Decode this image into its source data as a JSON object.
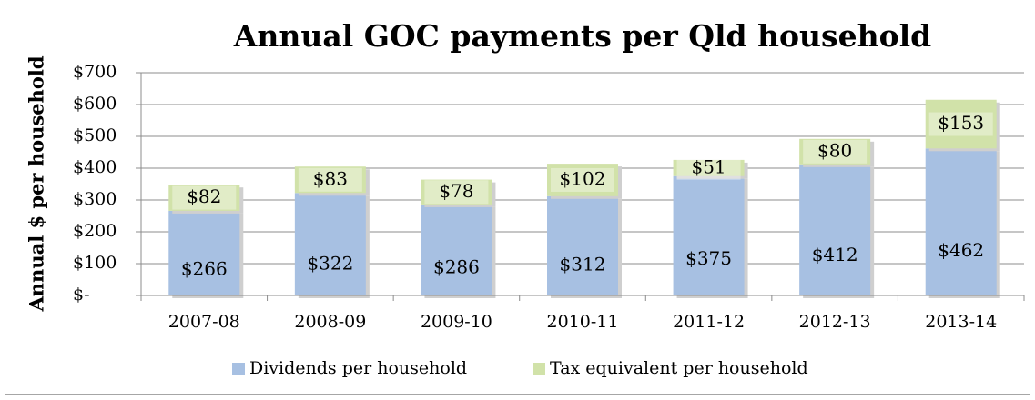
{
  "chart_data": {
    "type": "stacked_bar",
    "title": "Annual GOC payments per Qld household",
    "y_label": "Annual $ per household",
    "categories": [
      "2007-08",
      "2008-09",
      "2009-10",
      "2010-11",
      "2011-12",
      "2012-13",
      "2013-14"
    ],
    "series": [
      {
        "name": "Dividends per household",
        "color": "#a7c0e2",
        "values": [
          266,
          322,
          286,
          312,
          375,
          412,
          462
        ],
        "value_labels": [
          "$266",
          "$322",
          "$286",
          "$312",
          "$375",
          "$412",
          "$462"
        ]
      },
      {
        "name": "Tax equivalent per household",
        "color": "#d1e2a9",
        "values": [
          82,
          83,
          78,
          102,
          51,
          80,
          153
        ],
        "value_labels": [
          "$82",
          "$83",
          "$78",
          "$102",
          "$51",
          "$80",
          "$153"
        ]
      }
    ],
    "ylim": [
      0,
      700
    ],
    "yticks": [
      {
        "value": 0,
        "label": "$-"
      },
      {
        "value": 100,
        "label": "$100"
      },
      {
        "value": 200,
        "label": "$200"
      },
      {
        "value": 300,
        "label": "$300"
      },
      {
        "value": 400,
        "label": "$400"
      },
      {
        "value": 500,
        "label": "$500"
      },
      {
        "value": 600,
        "label": "$600"
      },
      {
        "value": 700,
        "label": "$700"
      }
    ],
    "grid": true,
    "legend": "bottom"
  }
}
